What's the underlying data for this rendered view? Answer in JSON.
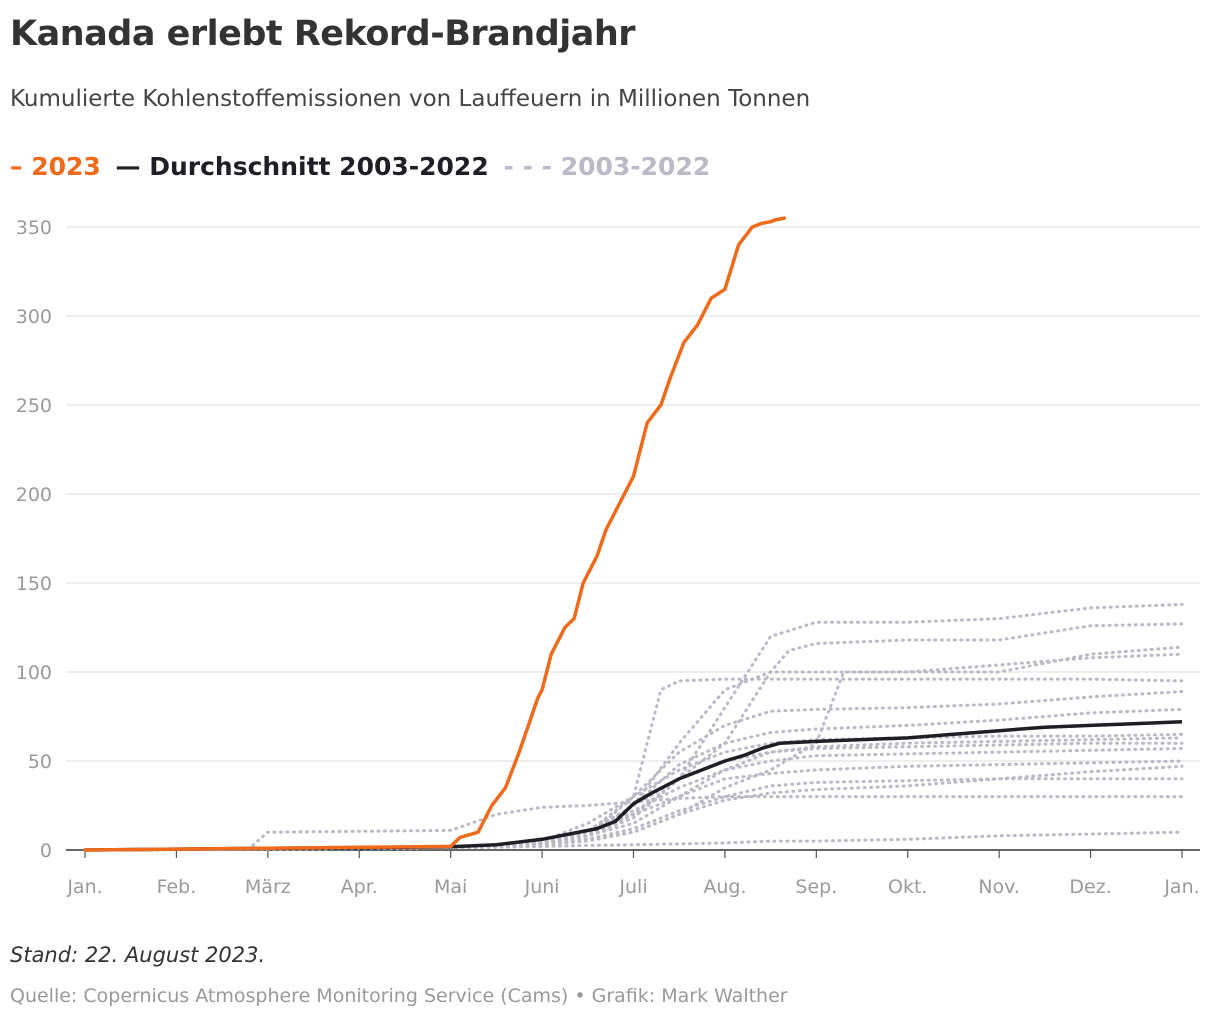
{
  "title": "Kanada erlebt Rekord-Brandjahr",
  "subtitle": "Kumulierte Kohlenstoffemissionen von Lauffeuern in Millionen Tonnen",
  "legend": {
    "current": "– 2023",
    "average": "— Durchschnitt 2003-2022",
    "range": "- - - 2003-2022"
  },
  "footer": {
    "stand": "Stand: 22. August 2023.",
    "source": "Quelle: Copernicus Atmosphere Monitoring Service (Cams) • Grafik: Mark Walther"
  },
  "colors": {
    "current": "#ef6a1a",
    "average": "#1e1e24",
    "history": "#b9b9c8",
    "grid": "#e4e4e4"
  },
  "chart_data": {
    "type": "line",
    "title": "Kanada erlebt Rekord-Brandjahr",
    "ylabel": "Millionen Tonnen",
    "xlabel": "",
    "ylim": [
      0,
      350
    ],
    "yticks": [
      0,
      50,
      100,
      150,
      200,
      250,
      300,
      350
    ],
    "xlim": [
      0,
      12
    ],
    "xticks": [
      {
        "value": 0,
        "label": "Jan."
      },
      {
        "value": 1,
        "label": "Feb."
      },
      {
        "value": 2,
        "label": "März"
      },
      {
        "value": 3,
        "label": "Apr."
      },
      {
        "value": 4,
        "label": "Mai"
      },
      {
        "value": 5,
        "label": "Juni"
      },
      {
        "value": 6,
        "label": "Juli"
      },
      {
        "value": 7,
        "label": "Aug."
      },
      {
        "value": 8,
        "label": "Sep."
      },
      {
        "value": 9,
        "label": "Okt."
      },
      {
        "value": 10,
        "label": "Nov."
      },
      {
        "value": 11,
        "label": "Dez."
      },
      {
        "value": 12,
        "label": "Jan."
      }
    ],
    "series": [
      {
        "name": "2023",
        "style": "solid",
        "x": [
          0,
          1,
          2,
          3,
          4,
          4.1,
          4.3,
          4.45,
          4.6,
          4.75,
          4.85,
          4.95,
          5.0,
          5.1,
          5.25,
          5.35,
          5.45,
          5.6,
          5.7,
          5.85,
          6.0,
          6.15,
          6.3,
          6.4,
          6.55,
          6.7,
          6.85,
          7.0,
          7.15,
          7.3,
          7.4,
          7.5,
          7.55,
          7.65
        ],
        "y": [
          0,
          0.5,
          1,
          1.5,
          2,
          7,
          10,
          25,
          35,
          55,
          70,
          85,
          90,
          110,
          125,
          130,
          150,
          165,
          180,
          195,
          210,
          240,
          250,
          265,
          285,
          295,
          310,
          315,
          340,
          350,
          352,
          353,
          354,
          355
        ]
      },
      {
        "name": "Durchschnitt 2003-2022",
        "style": "solid",
        "x": [
          0,
          1,
          2,
          3,
          4,
          4.5,
          5,
          5.3,
          5.6,
          5.8,
          6.0,
          6.2,
          6.5,
          6.8,
          7.0,
          7.2,
          7.4,
          7.6,
          8.0,
          8.5,
          9.0,
          9.5,
          10.0,
          10.5,
          11.0,
          11.5,
          12.0
        ],
        "y": [
          0,
          0.5,
          1,
          1.3,
          1.8,
          3,
          6,
          9,
          12,
          16,
          26,
          32,
          40,
          46,
          50,
          53,
          57,
          60,
          61,
          62,
          63,
          65,
          67,
          69,
          70,
          71,
          72
        ]
      },
      {
        "name": "2003-2022",
        "style": "dotted",
        "x": [
          0,
          1,
          2,
          3,
          4,
          4.5,
          5,
          5.5,
          6,
          6.5,
          7,
          7.5,
          8,
          9,
          10,
          11,
          12
        ],
        "y": [
          0,
          0.3,
          0.6,
          0.9,
          1.2,
          1.5,
          2,
          2.5,
          3,
          3.5,
          4,
          5,
          5,
          6,
          8,
          9,
          10
        ]
      },
      {
        "name": "2003-2022",
        "style": "dotted",
        "x": [
          0,
          1,
          1.8,
          2,
          3,
          4,
          4.5,
          5,
          5.5,
          6,
          6.5,
          7,
          8,
          9,
          10,
          11,
          12
        ],
        "y": [
          0,
          0.5,
          1,
          10,
          10.5,
          11,
          20,
          24,
          25,
          27,
          29,
          30,
          30,
          30,
          30,
          30,
          30
        ]
      },
      {
        "name": "2003-2022",
        "style": "dotted",
        "x": [
          0,
          1,
          2,
          3,
          4,
          4.5,
          5,
          5.5,
          6,
          6.5,
          7,
          7.5,
          8,
          9,
          10,
          11,
          12
        ],
        "y": [
          0,
          0.3,
          0.6,
          0.9,
          1.2,
          2,
          4,
          6,
          12,
          22,
          30,
          36,
          38,
          39,
          40,
          40,
          40
        ]
      },
      {
        "name": "2003-2022",
        "style": "dotted",
        "x": [
          0,
          1,
          2,
          3,
          4,
          4.5,
          5,
          5.5,
          6,
          6.5,
          7,
          7.5,
          8,
          9,
          10,
          11,
          12
        ],
        "y": [
          0,
          0.3,
          0.6,
          0.9,
          1.2,
          2,
          4,
          10,
          20,
          30,
          40,
          43,
          45,
          47,
          48,
          49,
          50
        ]
      },
      {
        "name": "2003-2022",
        "style": "dotted",
        "x": [
          0,
          1,
          2,
          3,
          4,
          4.5,
          5,
          5.5,
          6,
          6.5,
          7,
          7.5,
          8,
          9,
          10,
          11,
          12
        ],
        "y": [
          0,
          0.3,
          0.6,
          0.9,
          1.2,
          2,
          4,
          10,
          22,
          35,
          45,
          50,
          53,
          54,
          55,
          56,
          57
        ]
      },
      {
        "name": "2003-2022",
        "style": "dotted",
        "x": [
          0,
          1,
          2,
          3,
          4,
          4.5,
          5,
          5.5,
          6,
          6.5,
          7,
          7.5,
          8,
          9,
          10,
          11,
          12
        ],
        "y": [
          0,
          0.3,
          0.6,
          0.9,
          1.2,
          2,
          4,
          8,
          25,
          40,
          50,
          55,
          57,
          58,
          59,
          60,
          60
        ]
      },
      {
        "name": "2003-2022",
        "style": "dotted",
        "x": [
          0,
          1,
          2,
          3,
          4,
          4.5,
          5,
          5.5,
          6,
          6.5,
          7,
          7.5,
          8,
          9,
          10,
          11,
          12
        ],
        "y": [
          0,
          0.3,
          0.6,
          0.9,
          1.2,
          2,
          4,
          8,
          15,
          30,
          45,
          55,
          58,
          60,
          61,
          62,
          63
        ]
      },
      {
        "name": "2003-2022",
        "style": "dotted",
        "x": [
          0,
          1,
          2,
          3,
          4,
          4.5,
          5,
          5.5,
          6,
          6.5,
          7,
          7.5,
          8,
          9,
          10,
          11,
          12
        ],
        "y": [
          0,
          0.3,
          0.6,
          0.9,
          1.2,
          2,
          5,
          15,
          30,
          45,
          55,
          60,
          62,
          63,
          64,
          64,
          65
        ]
      },
      {
        "name": "2003-2022",
        "style": "dotted",
        "x": [
          0,
          1,
          2,
          3,
          4,
          4.5,
          5,
          5.5,
          6,
          6.3,
          6.5,
          7,
          8,
          9,
          10,
          11,
          12
        ],
        "y": [
          0,
          0.3,
          0.6,
          0.9,
          1.2,
          2,
          4,
          8,
          30,
          90,
          95,
          96,
          96,
          96,
          96,
          96,
          95
        ]
      },
      {
        "name": "2003-2022",
        "style": "dotted",
        "x": [
          0,
          1,
          2,
          3,
          4,
          4.5,
          5,
          5.5,
          6,
          6.5,
          7,
          7.5,
          8,
          9,
          10,
          11,
          12
        ],
        "y": [
          0,
          0.3,
          0.6,
          0.9,
          1.2,
          2,
          4,
          10,
          30,
          55,
          70,
          78,
          79,
          80,
          82,
          86,
          89
        ]
      },
      {
        "name": "2003-2022",
        "style": "dotted",
        "x": [
          0,
          1,
          2,
          3,
          4,
          4.5,
          5,
          5.5,
          6,
          6.5,
          7,
          7.5,
          8,
          9,
          10,
          11,
          12
        ],
        "y": [
          0,
          0.3,
          0.6,
          0.9,
          1.2,
          2,
          4,
          10,
          25,
          48,
          60,
          66,
          68,
          70,
          73,
          77,
          79
        ]
      },
      {
        "name": "2003-2022",
        "style": "dotted",
        "x": [
          0,
          1,
          2,
          3,
          4,
          4.5,
          5,
          5.5,
          6,
          6.5,
          7,
          7.5,
          7.7,
          8,
          9,
          10,
          11,
          12
        ],
        "y": [
          0,
          0.3,
          0.6,
          0.9,
          1.2,
          2,
          4,
          8,
          20,
          40,
          60,
          100,
          112,
          116,
          118,
          118,
          126,
          127
        ]
      },
      {
        "name": "2003-2022",
        "style": "dotted",
        "x": [
          0,
          1,
          2,
          3,
          4,
          4.5,
          5,
          5.5,
          6,
          6.5,
          7,
          7.5,
          8,
          9,
          10,
          11,
          12
        ],
        "y": [
          0,
          0.3,
          0.6,
          0.9,
          1.2,
          2,
          4,
          8,
          18,
          40,
          80,
          120,
          128,
          128,
          130,
          136,
          138
        ]
      },
      {
        "name": "2003-2022",
        "style": "dotted",
        "x": [
          0,
          1,
          2,
          3,
          4,
          4.5,
          5,
          5.5,
          6,
          6.5,
          7,
          7.5,
          8,
          8.3,
          9,
          10,
          11,
          12
        ],
        "y": [
          0,
          0.3,
          0.6,
          0.9,
          1.2,
          2,
          4,
          6,
          10,
          20,
          35,
          45,
          60,
          100,
          100,
          104,
          108,
          110
        ]
      },
      {
        "name": "2003-2022",
        "style": "dotted",
        "x": [
          0,
          1,
          2,
          3,
          4,
          4.5,
          5,
          5.5,
          6,
          6.5,
          7,
          7.5,
          8,
          9,
          10,
          11,
          12
        ],
        "y": [
          0,
          0.3,
          0.6,
          0.9,
          1.2,
          2,
          4,
          8,
          25,
          60,
          90,
          100,
          100,
          100,
          100,
          110,
          114
        ]
      },
      {
        "name": "2003-2022",
        "style": "dotted",
        "x": [
          0,
          1,
          2,
          3,
          4,
          4.5,
          5,
          5.5,
          6,
          6.5,
          7,
          7.5,
          8,
          9,
          10,
          11,
          12
        ],
        "y": [
          0,
          0.3,
          0.6,
          0.9,
          1.2,
          2,
          3,
          5,
          10,
          20,
          28,
          32,
          34,
          36,
          40,
          44,
          47
        ]
      }
    ]
  }
}
